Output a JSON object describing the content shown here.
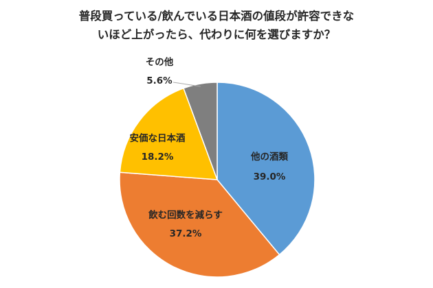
{
  "chart_data": {
    "type": "pie",
    "title_lines": [
      "普段買っている/飲んでいる日本酒の値段が許容できな",
      "いほど上がったら、代わりに何を選びますか？"
    ],
    "slices": [
      {
        "label": "他の酒類",
        "value": 39.0,
        "value_text": "39.0%",
        "color": "#5B9BD5"
      },
      {
        "label": "飲む回数を減らす",
        "value": 37.2,
        "value_text": "37.2%",
        "color": "#ED7D31"
      },
      {
        "label": "安価な日本酒",
        "value": 18.2,
        "value_text": "18.2%",
        "color": "#FFC000"
      },
      {
        "label": "その他",
        "value": 5.6,
        "value_text": "5.6%",
        "color": "#7F7F7F"
      }
    ],
    "start": "top",
    "direction": "clockwise",
    "legend": "none"
  }
}
